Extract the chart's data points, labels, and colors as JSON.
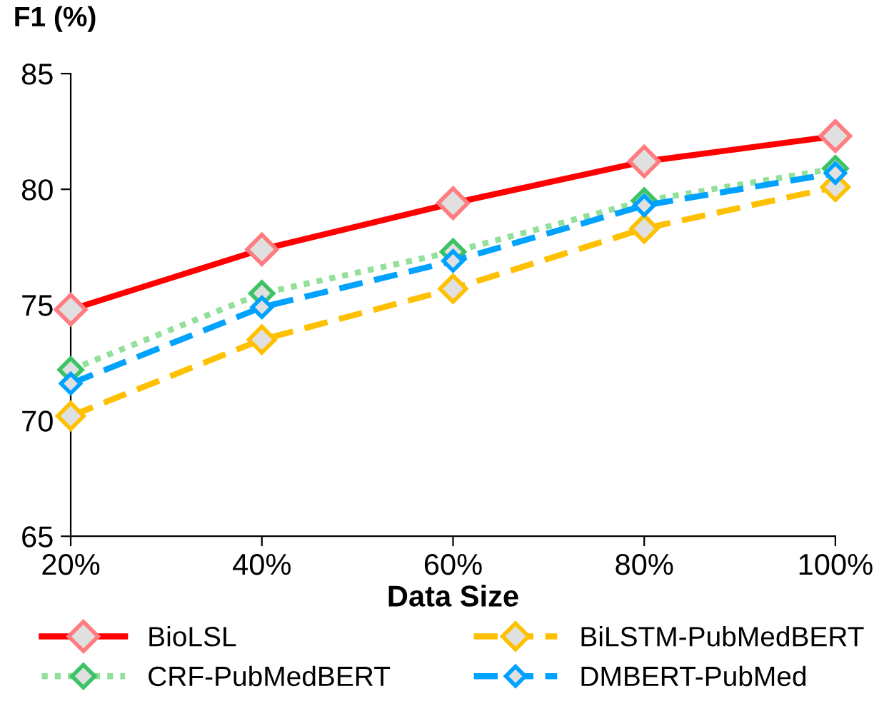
{
  "chart_data": {
    "type": "line",
    "xlabel": "Data Size",
    "ylabel": "F1 (%)",
    "categories": [
      "20%",
      "40%",
      "60%",
      "80%",
      "100%"
    ],
    "series": [
      {
        "name": "BioLSL",
        "color": "#ff0000",
        "line_style": "solid",
        "values": [
          74.8,
          77.4,
          79.4,
          81.2,
          82.3
        ]
      },
      {
        "name": "BiLSTM-PubMedBERT",
        "color": "#ffc000",
        "line_style": "dashed",
        "values": [
          70.2,
          73.5,
          75.7,
          78.3,
          80.1
        ]
      },
      {
        "name": "CRF-PubMedBERT",
        "color": "#92e09a",
        "line_style": "dotted",
        "values": [
          72.2,
          75.5,
          77.3,
          79.5,
          80.9
        ]
      },
      {
        "name": "DMBERT-PubMed",
        "color": "#00a2ff",
        "line_style": "dashed",
        "values": [
          71.6,
          74.9,
          76.9,
          79.3,
          80.7
        ]
      }
    ],
    "ylim": [
      65,
      85
    ],
    "yticks": [
      65,
      70,
      75,
      80,
      85
    ],
    "grid": false,
    "legend": "bottom",
    "marker": "diamond"
  }
}
